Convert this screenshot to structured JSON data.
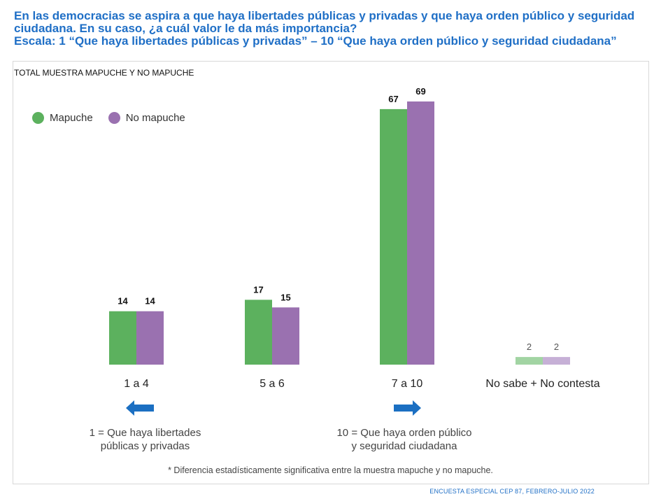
{
  "header": {
    "line1": "En las democracias se aspira a que haya libertades públicas y privadas y que haya orden público y seguridad",
    "line2": "ciudadana. En su caso, ¿a cuál valor le da más importancia?",
    "line3": "Escala: 1  “Que haya libertades públicas y privadas”  –  10 “Que haya orden público y seguridad ciudadana”"
  },
  "subtitle": "TOTAL MUESTRA MAPUCHE Y NO MAPUCHE",
  "notes": {
    "left_line1": "1 = Que haya libertades",
    "left_line2": "públicas y privadas",
    "right_line1": "10 = Que haya orden público",
    "right_line2": "y seguridad ciudadana"
  },
  "footnote": "* Diferencia estadísticamente significativa entre la muestra mapuche y no mapuche.",
  "source": "ENCUESTA ESPECIAL CEP 87, FEBRERO-JULIO 2022",
  "colors": {
    "mapuche": "#5cb15e",
    "no_mapuche": "#9a71b0",
    "mapuche_light": "#a2d4a3",
    "no_mapuche_light": "#c6b0d6",
    "heading": "#1f6fc6",
    "arrow": "#1b6fc2"
  },
  "icons": {
    "left_arrow": "arrow-left-icon",
    "right_arrow": "arrow-right-icon"
  },
  "chart_data": {
    "type": "bar",
    "categories": [
      "1 a 4",
      "5 a 6",
      "7 a 10",
      "No sabe + No contesta"
    ],
    "series": [
      {
        "name": "Mapuche",
        "values": [
          14,
          17,
          67,
          2
        ]
      },
      {
        "name": "No mapuche",
        "values": [
          14,
          15,
          69,
          2
        ]
      }
    ],
    "ylim": [
      0,
      69
    ],
    "grid": false,
    "legend_position": "top-left"
  }
}
